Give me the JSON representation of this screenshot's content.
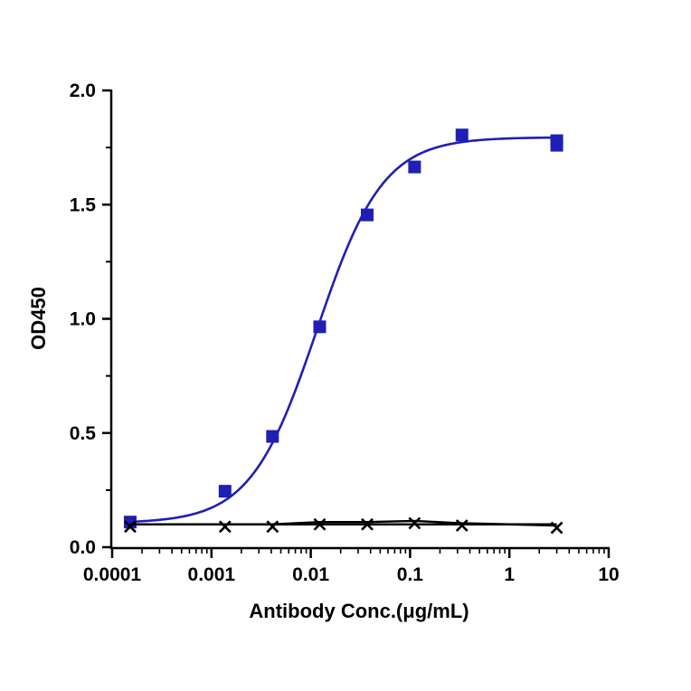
{
  "chart_data": {
    "type": "scatter",
    "xlabel": "Antibody Conc.(μg/mL)",
    "ylabel": "OD450",
    "xscale": "log",
    "xlim": [
      0.0001,
      10
    ],
    "ylim": [
      0,
      2.0
    ],
    "x_ticks": [
      "0.0001",
      "0.001",
      "0.01",
      "0.1",
      "1",
      "10"
    ],
    "y_ticks": [
      "0.0",
      "0.5",
      "1.0",
      "1.5",
      "2.0"
    ],
    "grid": false,
    "legend": "none",
    "series": [
      {
        "marker": "square",
        "color": "#1f1fb4",
        "fit": "four-parameter logistic",
        "points": [
          {
            "x": 0.000152,
            "y": 0.11
          },
          {
            "x": 0.00137,
            "y": 0.245
          },
          {
            "x": 0.00412,
            "y": 0.485
          },
          {
            "x": 0.0123,
            "y": 0.965
          },
          {
            "x": 0.037,
            "y": 1.455
          },
          {
            "x": 0.111,
            "y": 1.665
          },
          {
            "x": 0.333,
            "y": 1.805
          },
          {
            "x": 3.0,
            "y": 1.76
          },
          {
            "x": 3.0,
            "y": 1.78
          }
        ],
        "fit_params": {
          "bottom": 0.105,
          "top": 1.795,
          "ec50": 0.0115,
          "hill": 1.3
        }
      },
      {
        "marker": "x",
        "color": "#000000",
        "fit": "line",
        "points": [
          {
            "x": 0.000152,
            "y": 0.09
          },
          {
            "x": 0.00137,
            "y": 0.09
          },
          {
            "x": 0.00412,
            "y": 0.09
          },
          {
            "x": 0.0123,
            "y": 0.1
          },
          {
            "x": 0.037,
            "y": 0.1
          },
          {
            "x": 0.111,
            "y": 0.105
          },
          {
            "x": 0.333,
            "y": 0.095
          },
          {
            "x": 3.0,
            "y": 0.085
          }
        ]
      }
    ]
  }
}
